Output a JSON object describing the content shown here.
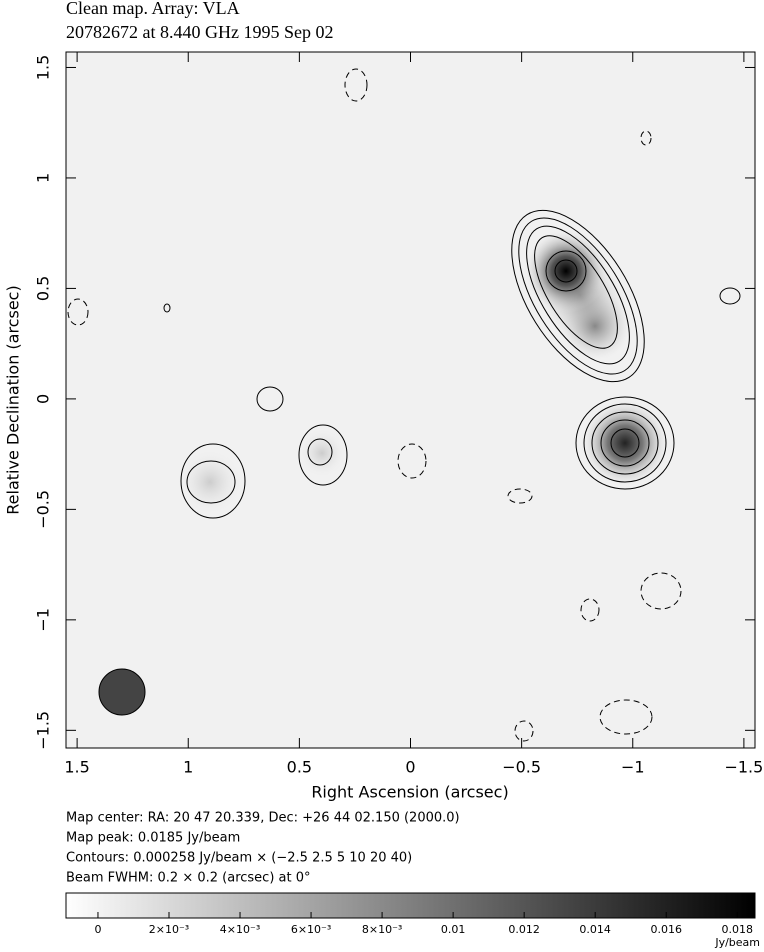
{
  "chart_data": {
    "type": "image",
    "title": "Clean map.  Array: VLA",
    "subtitle": "20782672 at 8.440 GHz 1995 Sep 02",
    "x_label": "Right Ascension  (arcsec)",
    "y_label": "Relative Declination  (arcsec)",
    "xlim": [
      1.55,
      -1.55
    ],
    "ylim": [
      -1.58,
      1.57
    ],
    "xticks": [
      1.5,
      1,
      0.5,
      0,
      {
        "value": -0.5,
        "label": "−0.5"
      },
      {
        "value": -1,
        "label": "−1"
      },
      {
        "value": -1.5,
        "label": "−1.5"
      }
    ],
    "yticks": [
      {
        "value": -1.5,
        "label": "−1.5"
      },
      {
        "value": -1,
        "label": "−1"
      },
      {
        "value": -0.5,
        "label": "−0.5"
      },
      0,
      0.5,
      1,
      1.5
    ],
    "notes": [
      "Map center:  RA: 20 47 20.339,  Dec: +26 44 02.150 (2000.0)",
      "Map peak: 0.0185 Jy/beam",
      "Contours: 0.000258 Jy/beam × (−2.5 2.5 5 10 20 40)",
      "Beam FWHM: 0.2 × 0.2 (arcsec) at 0°"
    ],
    "colorbar": {
      "label": "Jy/beam",
      "lim": [
        -0.0009,
        0.0185
      ],
      "ticks": [
        0,
        {
          "value": 0.002,
          "label": "2×10⁻³"
        },
        {
          "value": 0.004,
          "label": "4×10⁻³"
        },
        {
          "value": 0.006,
          "label": "6×10⁻³"
        },
        {
          "value": 0.008,
          "label": "8×10⁻³"
        },
        0.01,
        0.012,
        0.014,
        0.016,
        0.018
      ]
    }
  }
}
